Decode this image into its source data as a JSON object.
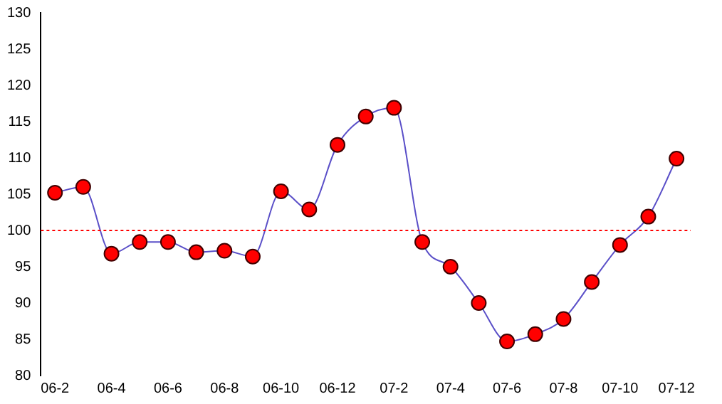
{
  "chart_data": {
    "type": "line",
    "categories": [
      "06-2",
      null,
      "06-4",
      null,
      "06-6",
      null,
      "06-8",
      null,
      "06-10",
      null,
      "06-12",
      null,
      "07-2",
      null,
      "07-4",
      null,
      "07-6",
      null,
      "07-8",
      null,
      "07-10",
      null,
      "07-12"
    ],
    "series": [
      {
        "color": "#5a4fc8",
        "values": [
          105.2,
          106,
          96.8,
          98.4,
          98.4,
          97,
          97.2,
          96.4,
          105.4,
          102.9,
          111.8,
          115.7,
          116.9,
          98.4,
          95,
          90,
          84.7,
          85.7,
          87.8,
          92.9,
          98,
          101.9,
          109.9
        ]
      }
    ],
    "ylim": [
      80,
      130
    ],
    "yticks": [
      80,
      85,
      90,
      95,
      100,
      105,
      110,
      115,
      120,
      125,
      130
    ],
    "ref_lines": [
      {
        "axis": "y",
        "value": 100,
        "color": "#ff0000",
        "line_style": "dotted"
      }
    ],
    "grid": false,
    "legend": false,
    "marker": "circle",
    "line_style": "solid"
  }
}
